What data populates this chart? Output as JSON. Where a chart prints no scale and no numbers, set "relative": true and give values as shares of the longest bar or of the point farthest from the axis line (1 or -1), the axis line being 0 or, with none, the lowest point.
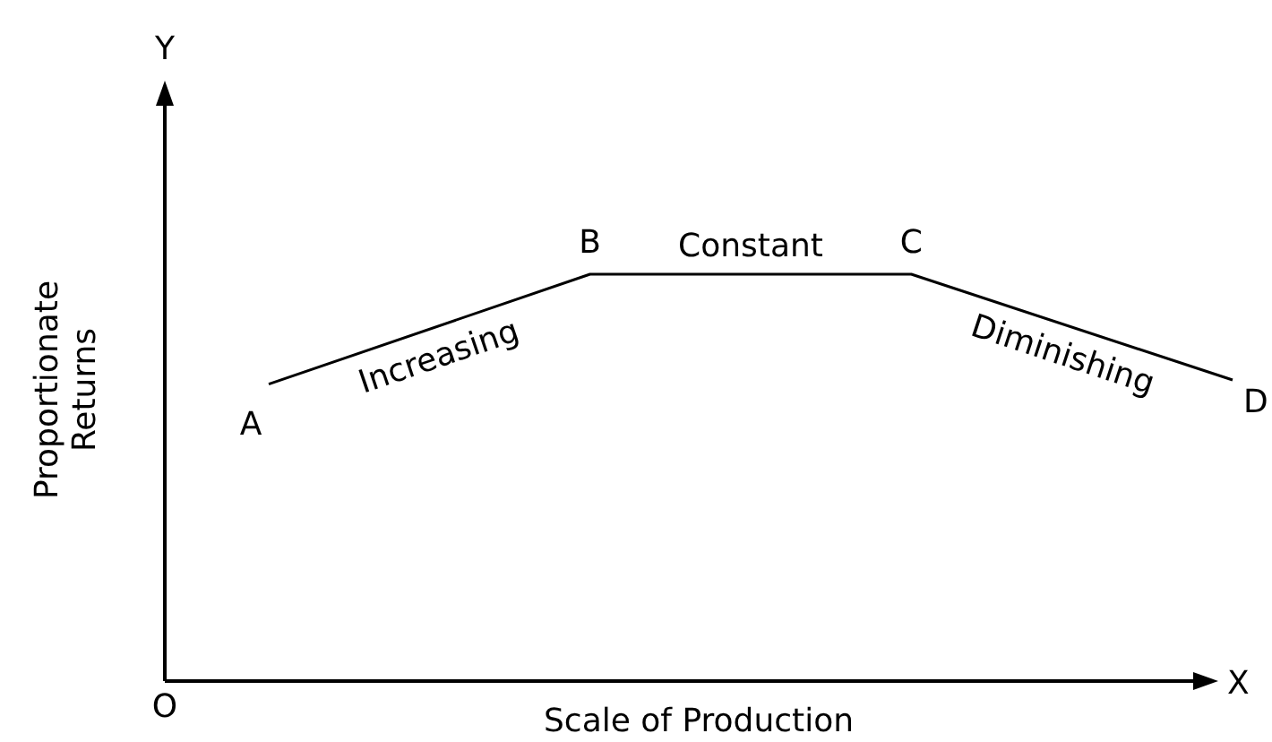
{
  "chart_data": {
    "type": "line",
    "relative": true,
    "xlabel": "Scale of Production",
    "ylabel": "Proportionate Returns",
    "categories": [
      "A",
      "B",
      "C",
      "D"
    ],
    "series": [
      {
        "color": "#000000",
        "values": [
          0.73,
          1,
          1,
          0.74
        ]
      }
    ],
    "annotations": [
      "Increasing",
      "Constant",
      "Diminishing",
      "O",
      "X",
      "Y"
    ],
    "marker": "none"
  }
}
